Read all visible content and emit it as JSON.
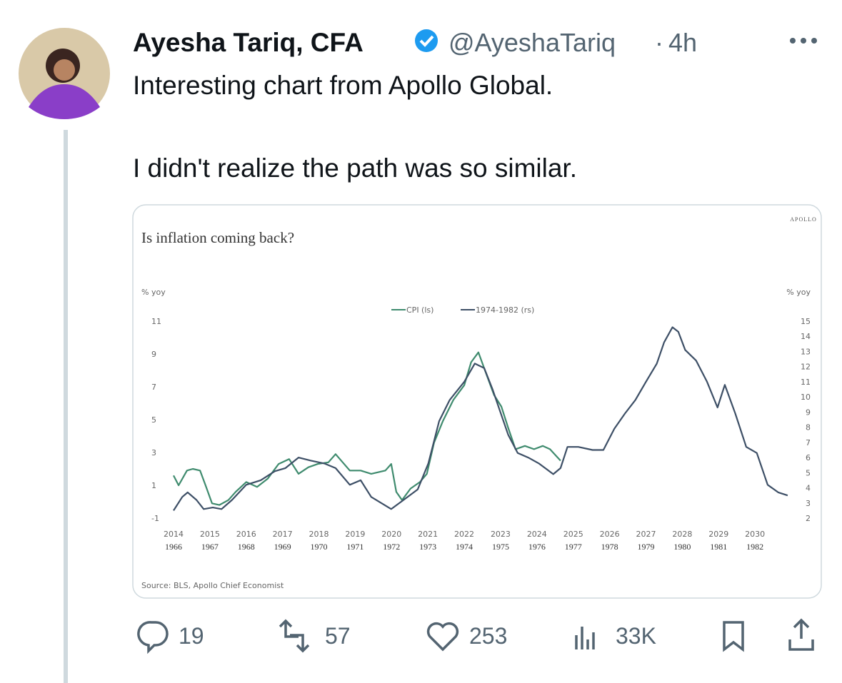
{
  "tweet": {
    "name": "Ayesha Tariq, CFA",
    "handle": "@AyeshaTariq",
    "separator": "·",
    "time": "4h",
    "text": [
      "Interesting chart from Apollo Global.",
      "I didn't realize the path was so similar."
    ],
    "actions": {
      "replies": 19,
      "retweets": 57,
      "likes": 253,
      "views": "33K"
    }
  },
  "chart_data": {
    "type": "line",
    "brand": "APOLLO",
    "title": "Is inflation coming back?",
    "ylabel": "% yoy",
    "y2label": "% yoy",
    "source": "Source: BLS, Apollo Chief Economist",
    "xlim": [
      2014,
      2031
    ],
    "xticks": [
      2014,
      2015,
      2016,
      2017,
      2018,
      2019,
      2020,
      2021,
      2022,
      2023,
      2024,
      2025,
      2026,
      2027,
      2028,
      2029,
      2030
    ],
    "x2ticks": [
      1966,
      1967,
      1968,
      1969,
      1970,
      1971,
      1972,
      1973,
      1974,
      1975,
      1976,
      1977,
      1978,
      1979,
      1980,
      1981,
      1982
    ],
    "ylim": [
      -1,
      11
    ],
    "yticks": [
      -1,
      1,
      3,
      5,
      7,
      9,
      11
    ],
    "y2lim": [
      2,
      15
    ],
    "y2ticks": [
      2,
      3,
      4,
      5,
      6,
      7,
      8,
      9,
      10,
      11,
      12,
      13,
      14,
      15
    ],
    "series": [
      {
        "name": "CPI (ls)",
        "color": "#3f8b6e",
        "x": [
          2014.0,
          2014.14,
          2014.37,
          2014.53,
          2014.73,
          2014.88,
          2015.06,
          2015.26,
          2015.51,
          2015.71,
          2016.0,
          2016.3,
          2016.59,
          2016.89,
          2017.18,
          2017.44,
          2017.71,
          2017.97,
          2018.26,
          2018.46,
          2018.85,
          2019.15,
          2019.44,
          2019.83,
          2019.99,
          2020.13,
          2020.29,
          2020.52,
          2020.78,
          2020.97,
          2021.17,
          2021.41,
          2021.7,
          2022.0,
          2022.19,
          2022.39,
          2022.62,
          2022.82,
          2023.02,
          2023.21,
          2023.41,
          2023.67,
          2023.92,
          2024.16,
          2024.36,
          2024.65
        ],
        "values": [
          1.6,
          1.0,
          1.9,
          2.0,
          1.9,
          1.0,
          -0.1,
          -0.2,
          0.1,
          0.6,
          1.2,
          0.9,
          1.4,
          2.3,
          2.6,
          1.7,
          2.1,
          2.3,
          2.4,
          2.9,
          1.9,
          1.9,
          1.7,
          1.9,
          2.3,
          0.6,
          0.1,
          0.8,
          1.2,
          1.7,
          3.6,
          4.9,
          6.2,
          7.1,
          8.5,
          9.1,
          7.7,
          6.5,
          5.8,
          4.5,
          3.2,
          3.4,
          3.2,
          3.4,
          3.2,
          2.5
        ]
      },
      {
        "name": "1974-1982 (rs)",
        "color": "#3d4f66",
        "axis": "y2",
        "x": [
          2014.0,
          2014.24,
          2014.39,
          2014.63,
          2014.83,
          2015.08,
          2015.32,
          2015.61,
          2016.0,
          2016.4,
          2016.79,
          2017.08,
          2017.44,
          2017.77,
          2018.16,
          2018.46,
          2018.85,
          2019.15,
          2019.44,
          2019.99,
          2020.33,
          2020.72,
          2021.01,
          2021.31,
          2021.6,
          2022.0,
          2022.29,
          2022.55,
          2022.78,
          2022.98,
          2023.21,
          2023.47,
          2023.76,
          2024.06,
          2024.45,
          2024.65,
          2024.84,
          2025.14,
          2025.53,
          2025.83,
          2026.13,
          2026.42,
          2026.71,
          2027.0,
          2027.3,
          2027.5,
          2027.73,
          2027.89,
          2028.08,
          2028.38,
          2028.68,
          2028.97,
          2029.17,
          2029.46,
          2029.76,
          2030.05,
          2030.35,
          2030.64,
          2030.9
        ],
        "values": [
          2.5,
          3.4,
          3.7,
          3.2,
          2.6,
          2.7,
          2.6,
          3.2,
          4.2,
          4.5,
          5.1,
          5.3,
          6.0,
          5.8,
          5.6,
          5.3,
          4.2,
          4.5,
          3.4,
          2.6,
          3.2,
          3.9,
          5.6,
          8.4,
          9.8,
          11.0,
          12.2,
          11.9,
          10.5,
          9.1,
          7.5,
          6.3,
          6.0,
          5.6,
          4.9,
          5.3,
          6.7,
          6.7,
          6.5,
          6.5,
          7.9,
          8.9,
          9.8,
          11.0,
          12.2,
          13.6,
          14.6,
          14.3,
          13.1,
          12.4,
          11.0,
          9.3,
          10.8,
          8.9,
          6.7,
          6.3,
          4.2,
          3.7,
          3.5
        ]
      }
    ]
  }
}
